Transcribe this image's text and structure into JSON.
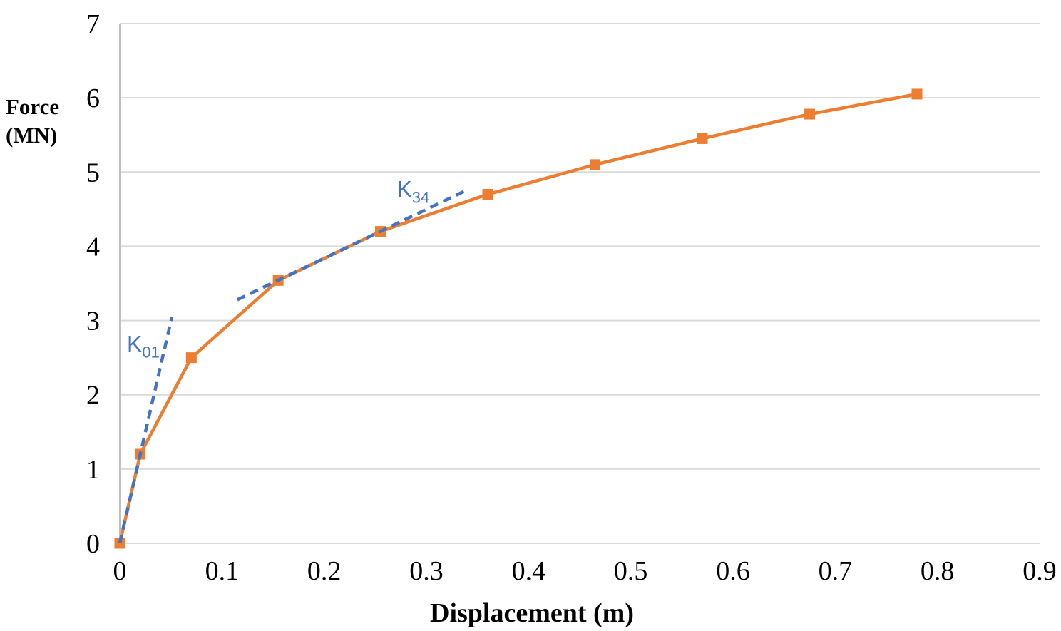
{
  "figure": {
    "background": "#ffffff"
  },
  "chart_data": {
    "type": "line",
    "title": "",
    "xlabel": "Displacement (m)",
    "ylabel": "Force (MN)",
    "ylabel_line1": "Force",
    "ylabel_line2": "(MN)",
    "xlim": [
      0,
      0.9
    ],
    "ylim": [
      0,
      7
    ],
    "x_tick_values": [
      0,
      0.1,
      0.2,
      0.3,
      0.4,
      0.5,
      0.6,
      0.7,
      0.8,
      0.9
    ],
    "x_tick_labels": [
      "0",
      "0.1",
      "0.2",
      "0.3",
      "0.4",
      "0.5",
      "0.6",
      "0.7",
      "0.8",
      "0.9"
    ],
    "y_tick_values": [
      0,
      1,
      2,
      3,
      4,
      5,
      6,
      7
    ],
    "y_tick_labels": [
      "0",
      "1",
      "2",
      "3",
      "4",
      "5",
      "6",
      "7"
    ],
    "grid": "horizontal-gridlines-only",
    "legend": "none",
    "colors": {
      "curve": "#ED7D31",
      "tangent": "#4472C4",
      "gridline": "#D9D9D9",
      "axis_line": "#BFBFBF",
      "text": "#000000"
    },
    "series": [
      {
        "name": "force-displacement-curve",
        "style": "solid",
        "marker": "square",
        "color": "#ED7D31",
        "points": [
          [
            0,
            0
          ],
          [
            0.02,
            1.2
          ],
          [
            0.07,
            2.5
          ],
          [
            0.155,
            3.54
          ],
          [
            0.255,
            4.2
          ],
          [
            0.36,
            4.7
          ],
          [
            0.465,
            5.1
          ],
          [
            0.57,
            5.45
          ],
          [
            0.675,
            5.78
          ],
          [
            0.78,
            6.05
          ]
        ]
      },
      {
        "name": "K01-initial-stiffness-tangent",
        "style": "dashed",
        "marker": "none",
        "color": "#4472C4",
        "points": [
          [
            0,
            0
          ],
          [
            0.051,
            3.05
          ]
        ]
      },
      {
        "name": "K34-stiffness-tangent",
        "style": "dashed",
        "marker": "none",
        "color": "#4472C4",
        "points": [
          [
            0.115,
            3.28
          ],
          [
            0.34,
            4.76
          ]
        ]
      }
    ],
    "annotations": [
      {
        "name": "K01-label",
        "text": "K",
        "subscript": "01",
        "x": 0.023,
        "y": 2.58,
        "color": "#4472C4"
      },
      {
        "name": "K34-label",
        "text": "K",
        "subscript": "34",
        "x": 0.287,
        "y": 4.66,
        "color": "#4472C4"
      }
    ]
  }
}
